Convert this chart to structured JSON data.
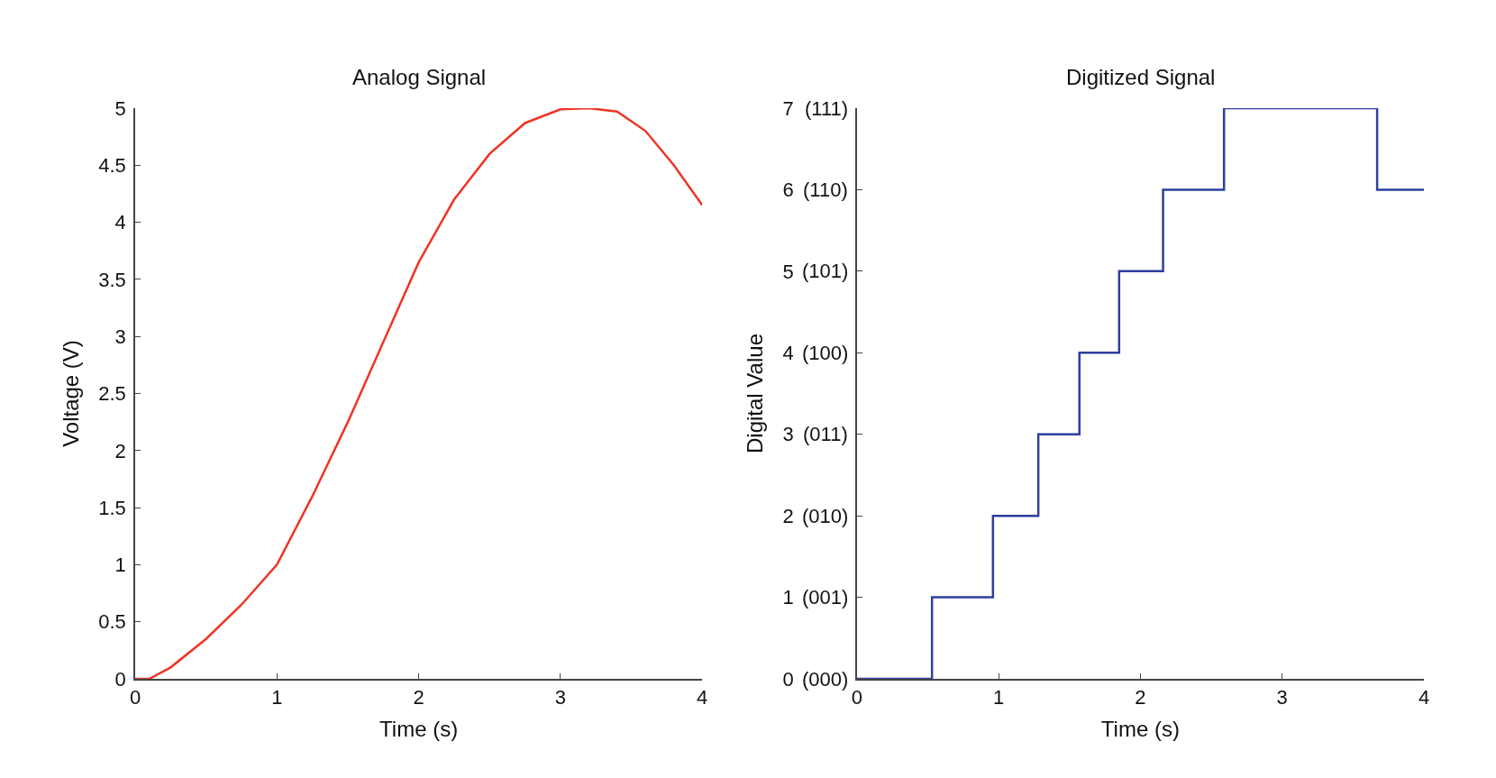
{
  "chart_data": [
    {
      "type": "line",
      "title": "Analog Signal",
      "xlabel": "Time (s)",
      "ylabel": "Voltage (V)",
      "x": [
        0,
        0.1,
        0.25,
        0.5,
        0.75,
        1,
        1.25,
        1.5,
        1.75,
        2,
        2.25,
        2.5,
        2.75,
        3,
        3.2,
        3.4,
        3.6,
        3.8,
        4
      ],
      "series": [
        {
          "color": "#ee3524",
          "values": [
            0,
            0.0,
            0.1,
            0.35,
            0.65,
            1.0,
            1.6,
            2.25,
            2.95,
            3.65,
            4.2,
            4.6,
            4.87,
            4.99,
            5,
            4.97,
            4.8,
            4.5,
            4.15
          ]
        }
      ],
      "xlim": [
        0,
        4
      ],
      "xticks": [
        0,
        1,
        2,
        3,
        4
      ],
      "ylim": [
        0,
        5
      ],
      "yticks": [
        0,
        0.5,
        1,
        1.5,
        2,
        2.5,
        3,
        3.5,
        4,
        4.5,
        5
      ]
    },
    {
      "type": "step",
      "title": "Digitized Signal",
      "xlabel": "Time (s)",
      "ylabel": "Digital Value",
      "x": [
        0,
        0.53,
        0.96,
        1.28,
        1.57,
        1.85,
        2.16,
        2.59,
        3.67,
        4
      ],
      "series": [
        {
          "color": "#2e3f9e",
          "values": [
            0,
            1,
            2,
            3,
            4,
            5,
            6,
            7,
            6,
            6
          ]
        }
      ],
      "xlim": [
        0,
        4
      ],
      "xticks": [
        0,
        1,
        2,
        3,
        4
      ],
      "ylim": [
        0,
        7
      ],
      "yticks": [
        0,
        1,
        2,
        3,
        4,
        5,
        6,
        7
      ],
      "annotations": [
        "(000)",
        "(001)",
        "(010)",
        "(011)",
        "(100)",
        "(101)",
        "(110)",
        "(111)"
      ]
    }
  ]
}
